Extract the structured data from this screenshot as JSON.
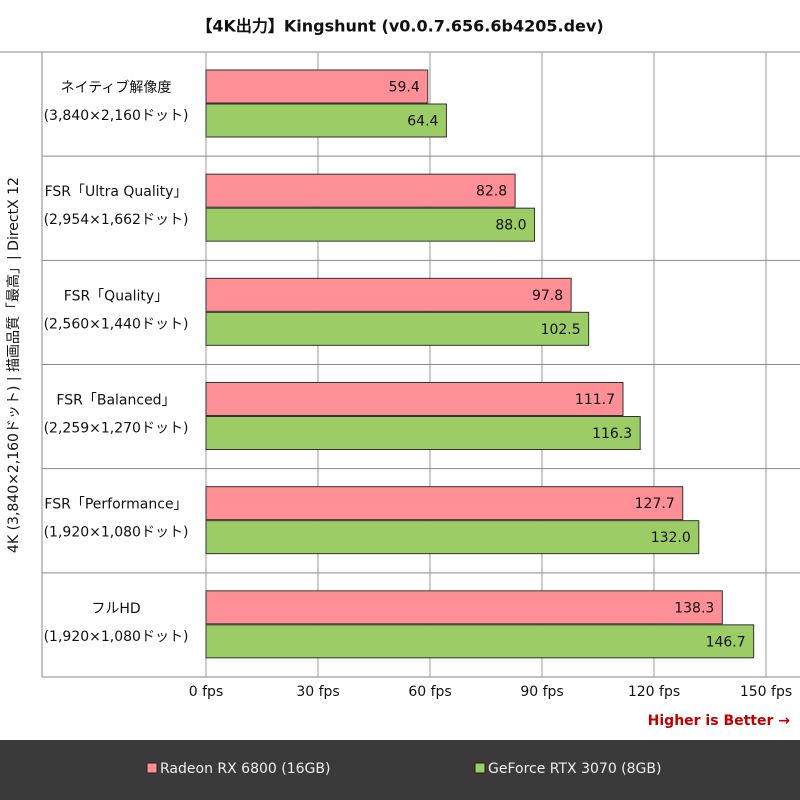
{
  "chart_data": {
    "type": "bar",
    "orientation": "horizontal",
    "title": "【4K出力】Kingshunt (v0.0.7.656.6b4205.dev)",
    "axis_label": "4K (3,840×2,160ドット) | 描画品質「最高」| DirectX 12",
    "categories": [
      "ネイティブ解像度",
      "FSR「Ultra Quality」",
      "FSR「Quality」",
      "FSR「Balanced」",
      "FSR「Performance」",
      "フルHD"
    ],
    "category_resolutions": [
      "(3,840×2,160ドット)",
      "(2,954×1,662ドット)",
      "(2,560×1,440ドット)",
      "(2,259×1,270ドット)",
      "(1,920×1,080ドット)",
      "(1,920×1,080ドット)"
    ],
    "series": [
      {
        "name": "Radeon RX 6800 (16GB)",
        "color": "#ff8f97",
        "values": [
          59.4,
          82.8,
          97.8,
          111.7,
          127.7,
          138.3
        ],
        "value_labels": [
          "59.4",
          "82.8",
          "97.8",
          "111.7",
          "127.7",
          "138.3"
        ]
      },
      {
        "name": "GeForce RTX 3070 (8GB)",
        "color": "#9ccc65",
        "values": [
          64.4,
          88.0,
          102.5,
          116.3,
          132.0,
          146.7
        ],
        "value_labels": [
          "64.4",
          "88.0",
          "102.5",
          "116.3",
          "132.0",
          "146.7"
        ]
      }
    ],
    "xlim": [
      0,
      150
    ],
    "xticks": [
      {
        "value": 0,
        "label": "0 fps"
      },
      {
        "value": 30,
        "label": "30 fps"
      },
      {
        "value": 60,
        "label": "60 fps"
      },
      {
        "value": 90,
        "label": "90 fps"
      },
      {
        "value": 120,
        "label": "120 fps"
      },
      {
        "value": 150,
        "label": "150 fps"
      }
    ],
    "annotation": "Higher is Better →",
    "grid": true
  }
}
